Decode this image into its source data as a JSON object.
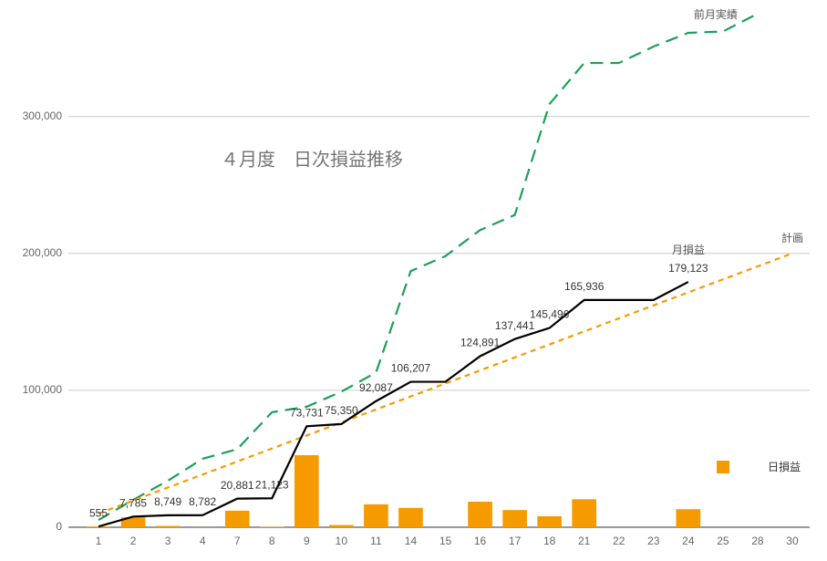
{
  "chart_data": {
    "type": "combo",
    "title": "４月度　日次損益推移",
    "categories": [
      "1",
      "2",
      "3",
      "4",
      "7",
      "8",
      "9",
      "10",
      "11",
      "14",
      "15",
      "16",
      "17",
      "18",
      "21",
      "22",
      "23",
      "24",
      "25",
      "28",
      "30"
    ],
    "ylim": [
      0,
      375000
    ],
    "yticks": [
      {
        "value": 0,
        "label": "0"
      },
      {
        "value": 100000,
        "label": "100,000"
      },
      {
        "value": 200000,
        "label": "200,000"
      },
      {
        "value": 300000,
        "label": "300,000"
      }
    ],
    "grid": true,
    "legend": "right",
    "series": [
      {
        "name": "日損益",
        "type": "bar",
        "color": "#f59b00",
        "values": [
          555,
          7230,
          964,
          33,
          12099,
          242,
          52608,
          1619,
          16737,
          14120,
          0,
          18684,
          12550,
          8055,
          20440,
          0,
          0,
          13187,
          null,
          null,
          null
        ]
      },
      {
        "name": "前月実績",
        "type": "line",
        "dash": "dashed",
        "color": "#1e9e5a",
        "values": [
          5300,
          20000,
          34000,
          50000,
          57000,
          84000,
          88000,
          99000,
          113000,
          187000,
          198000,
          217000,
          228000,
          309000,
          339000,
          339000,
          351000,
          361000,
          362000,
          375000,
          null
        ]
      },
      {
        "name": "計画",
        "type": "line",
        "dash": "dotted",
        "color": "#f59b00",
        "values": [
          10000,
          19500,
          29000,
          38500,
          48000,
          57500,
          67000,
          76500,
          86000,
          95500,
          105000,
          114500,
          124000,
          133500,
          143000,
          152500,
          162000,
          171500,
          181000,
          190500,
          200000
        ]
      },
      {
        "name": "月損益",
        "type": "line",
        "dash": "solid",
        "color": "#000000",
        "values": [
          555,
          7785,
          8749,
          8782,
          20881,
          21123,
          73731,
          75350,
          92087,
          106207,
          106207,
          124891,
          137441,
          145496,
          165936,
          165936,
          165936,
          179123,
          null,
          null,
          null
        ],
        "value_labels": [
          "555",
          "7,785",
          "8,749",
          "8,782",
          "20,881",
          "21,123",
          "73,731",
          "75,350",
          "92,087",
          "106,207",
          null,
          "124,891",
          "137,441",
          "145,496",
          "165,936",
          null,
          null,
          "179,123",
          null,
          null,
          null
        ]
      }
    ]
  }
}
